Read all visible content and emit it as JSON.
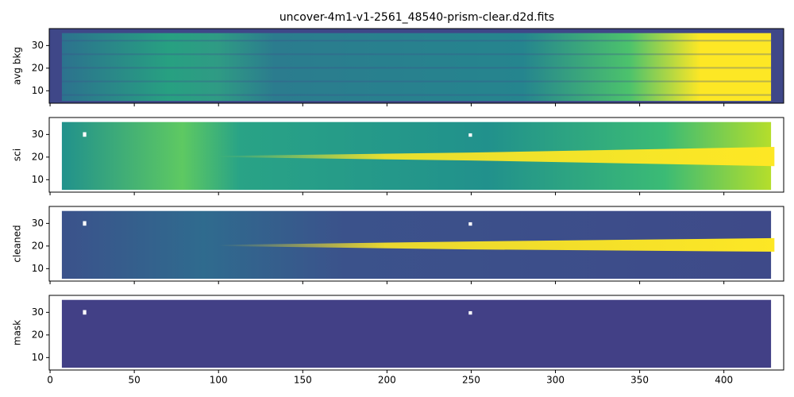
{
  "chart_data": [
    {
      "type": "image",
      "title": "uncover-4m1-v1-2561_48540-prism-clear.d2d.fits",
      "ylabel": "avg bkg",
      "xlim": [
        -0.5,
        435.5
      ],
      "ylim": [
        4.5,
        37.5
      ],
      "yticks": [
        10,
        20,
        30
      ]
    },
    {
      "type": "image",
      "ylabel": "sci",
      "xlim": [
        -0.5,
        435.5
      ],
      "ylim": [
        4.5,
        37.5
      ],
      "yticks": [
        10,
        20,
        30
      ]
    },
    {
      "type": "image",
      "ylabel": "cleaned",
      "xlim": [
        -0.5,
        435.5
      ],
      "ylim": [
        4.5,
        37.5
      ],
      "yticks": [
        10,
        20,
        30
      ]
    },
    {
      "type": "image",
      "ylabel": "mask",
      "xlim": [
        -0.5,
        435.5
      ],
      "ylim": [
        4.5,
        37.5
      ],
      "yticks": [
        10,
        20,
        30
      ],
      "xticks": [
        0,
        50,
        100,
        150,
        200,
        250,
        300,
        350,
        400
      ]
    }
  ]
}
